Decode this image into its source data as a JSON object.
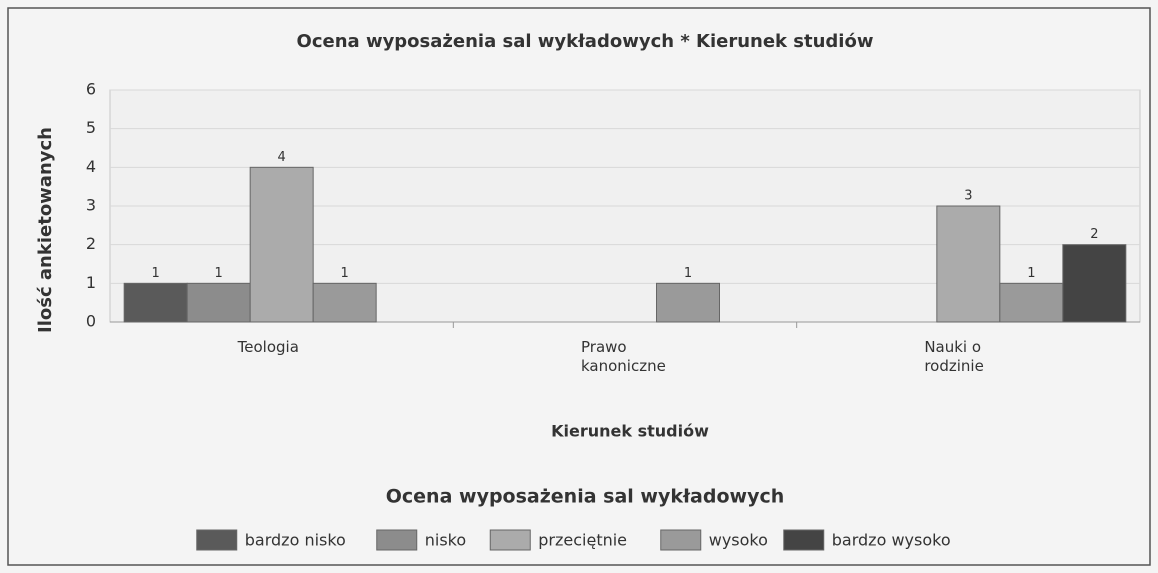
{
  "chart_data": {
    "type": "bar",
    "title": "Ocena wyposażenia sal wykładowych * Kierunek studiów",
    "x_label": "Kierunek studiów",
    "y_label": "Ilość ankietowanych",
    "legend_title": "Ocena wyposażenia sal wykładowych",
    "categories": [
      "Teologia",
      "Prawo kanoniczne",
      "Nauki o rodzinie"
    ],
    "series": [
      {
        "name": "bardzo nisko",
        "color": "#5a5a5a",
        "values": [
          1,
          null,
          null
        ]
      },
      {
        "name": "nisko",
        "color": "#8c8c8c",
        "values": [
          1,
          null,
          null
        ]
      },
      {
        "name": "przeciętnie",
        "color": "#ababab",
        "values": [
          4,
          null,
          3
        ]
      },
      {
        "name": "wysoko",
        "color": "#9a9a9a",
        "values": [
          1,
          1,
          1
        ]
      },
      {
        "name": "bardzo wysoko",
        "color": "#444444",
        "values": [
          null,
          null,
          2
        ]
      }
    ],
    "ylim": [
      0,
      6
    ],
    "yticks": [
      0,
      1,
      2,
      3,
      4,
      5,
      6
    ],
    "grid": true
  }
}
